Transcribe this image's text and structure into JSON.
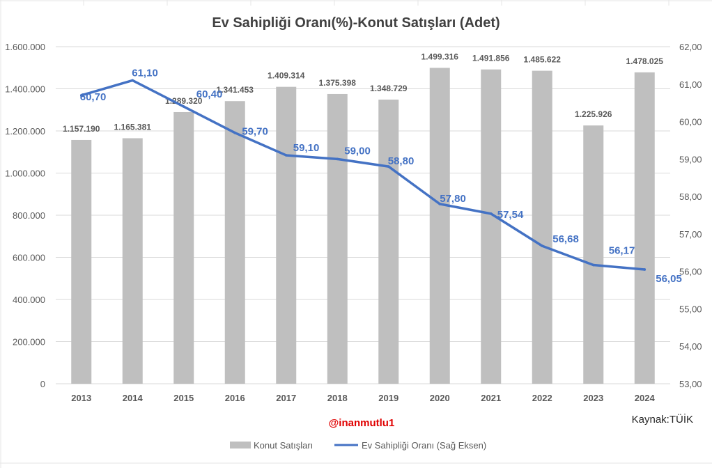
{
  "chart_data": {
    "type": "bar+line",
    "title": "Ev Sahipliği Oranı(%)-Konut Satışları (Adet)",
    "categories": [
      "2013",
      "2014",
      "2015",
      "2016",
      "2017",
      "2018",
      "2019",
      "2020",
      "2021",
      "2022",
      "2023",
      "2024"
    ],
    "series": [
      {
        "name": "Konut Satışları",
        "type": "bar",
        "axis": "left",
        "values": [
          1157190,
          1165381,
          1289320,
          1341453,
          1409314,
          1375398,
          1348729,
          1499316,
          1491856,
          1485622,
          1225926,
          1478025
        ],
        "labels": [
          "1.157.190",
          "1.165.381",
          "1.289.320",
          "1.341.453",
          "1.409.314",
          "1.375.398",
          "1.348.729",
          "1.499.316",
          "1.491.856",
          "1.485.622",
          "1.225.926",
          "1.478.025"
        ],
        "color": "#bfbfbf",
        "label_color": "#595959"
      },
      {
        "name": "Ev Sahipliği Oranı (Sağ Eksen)",
        "type": "line",
        "axis": "right",
        "values": [
          60.7,
          61.1,
          60.4,
          59.7,
          59.1,
          59.0,
          58.8,
          57.8,
          57.54,
          56.68,
          56.17,
          56.05
        ],
        "labels": [
          "60,70",
          "61,10",
          "60,40",
          "59,70",
          "59,10",
          "59,00",
          "58,80",
          "57,80",
          "57,54",
          "56,68",
          "56,17",
          "56,05"
        ],
        "color": "#4472c4"
      }
    ],
    "y_left": {
      "min": 0,
      "max": 1600000,
      "step": 200000,
      "ticks": [
        "0",
        "200.000",
        "400.000",
        "600.000",
        "800.000",
        "1.000.000",
        "1.200.000",
        "1.400.000",
        "1.600.000"
      ]
    },
    "y_right": {
      "min": 53,
      "max": 62,
      "step": 1,
      "ticks": [
        "53,00",
        "54,00",
        "55,00",
        "56,00",
        "57,00",
        "58,00",
        "59,00",
        "60,00",
        "61,00",
        "62,00"
      ]
    },
    "grid": true,
    "legend_position": "bottom",
    "source": "Kaynak:TÜİK",
    "watermark": "@inanmutlu1"
  },
  "colors": {
    "bar": "#bfbfbf",
    "line": "#4472c4",
    "grid": "#d9d9d9",
    "axis_text": "#595959",
    "title": "#404040",
    "watermark": "#e00000"
  }
}
